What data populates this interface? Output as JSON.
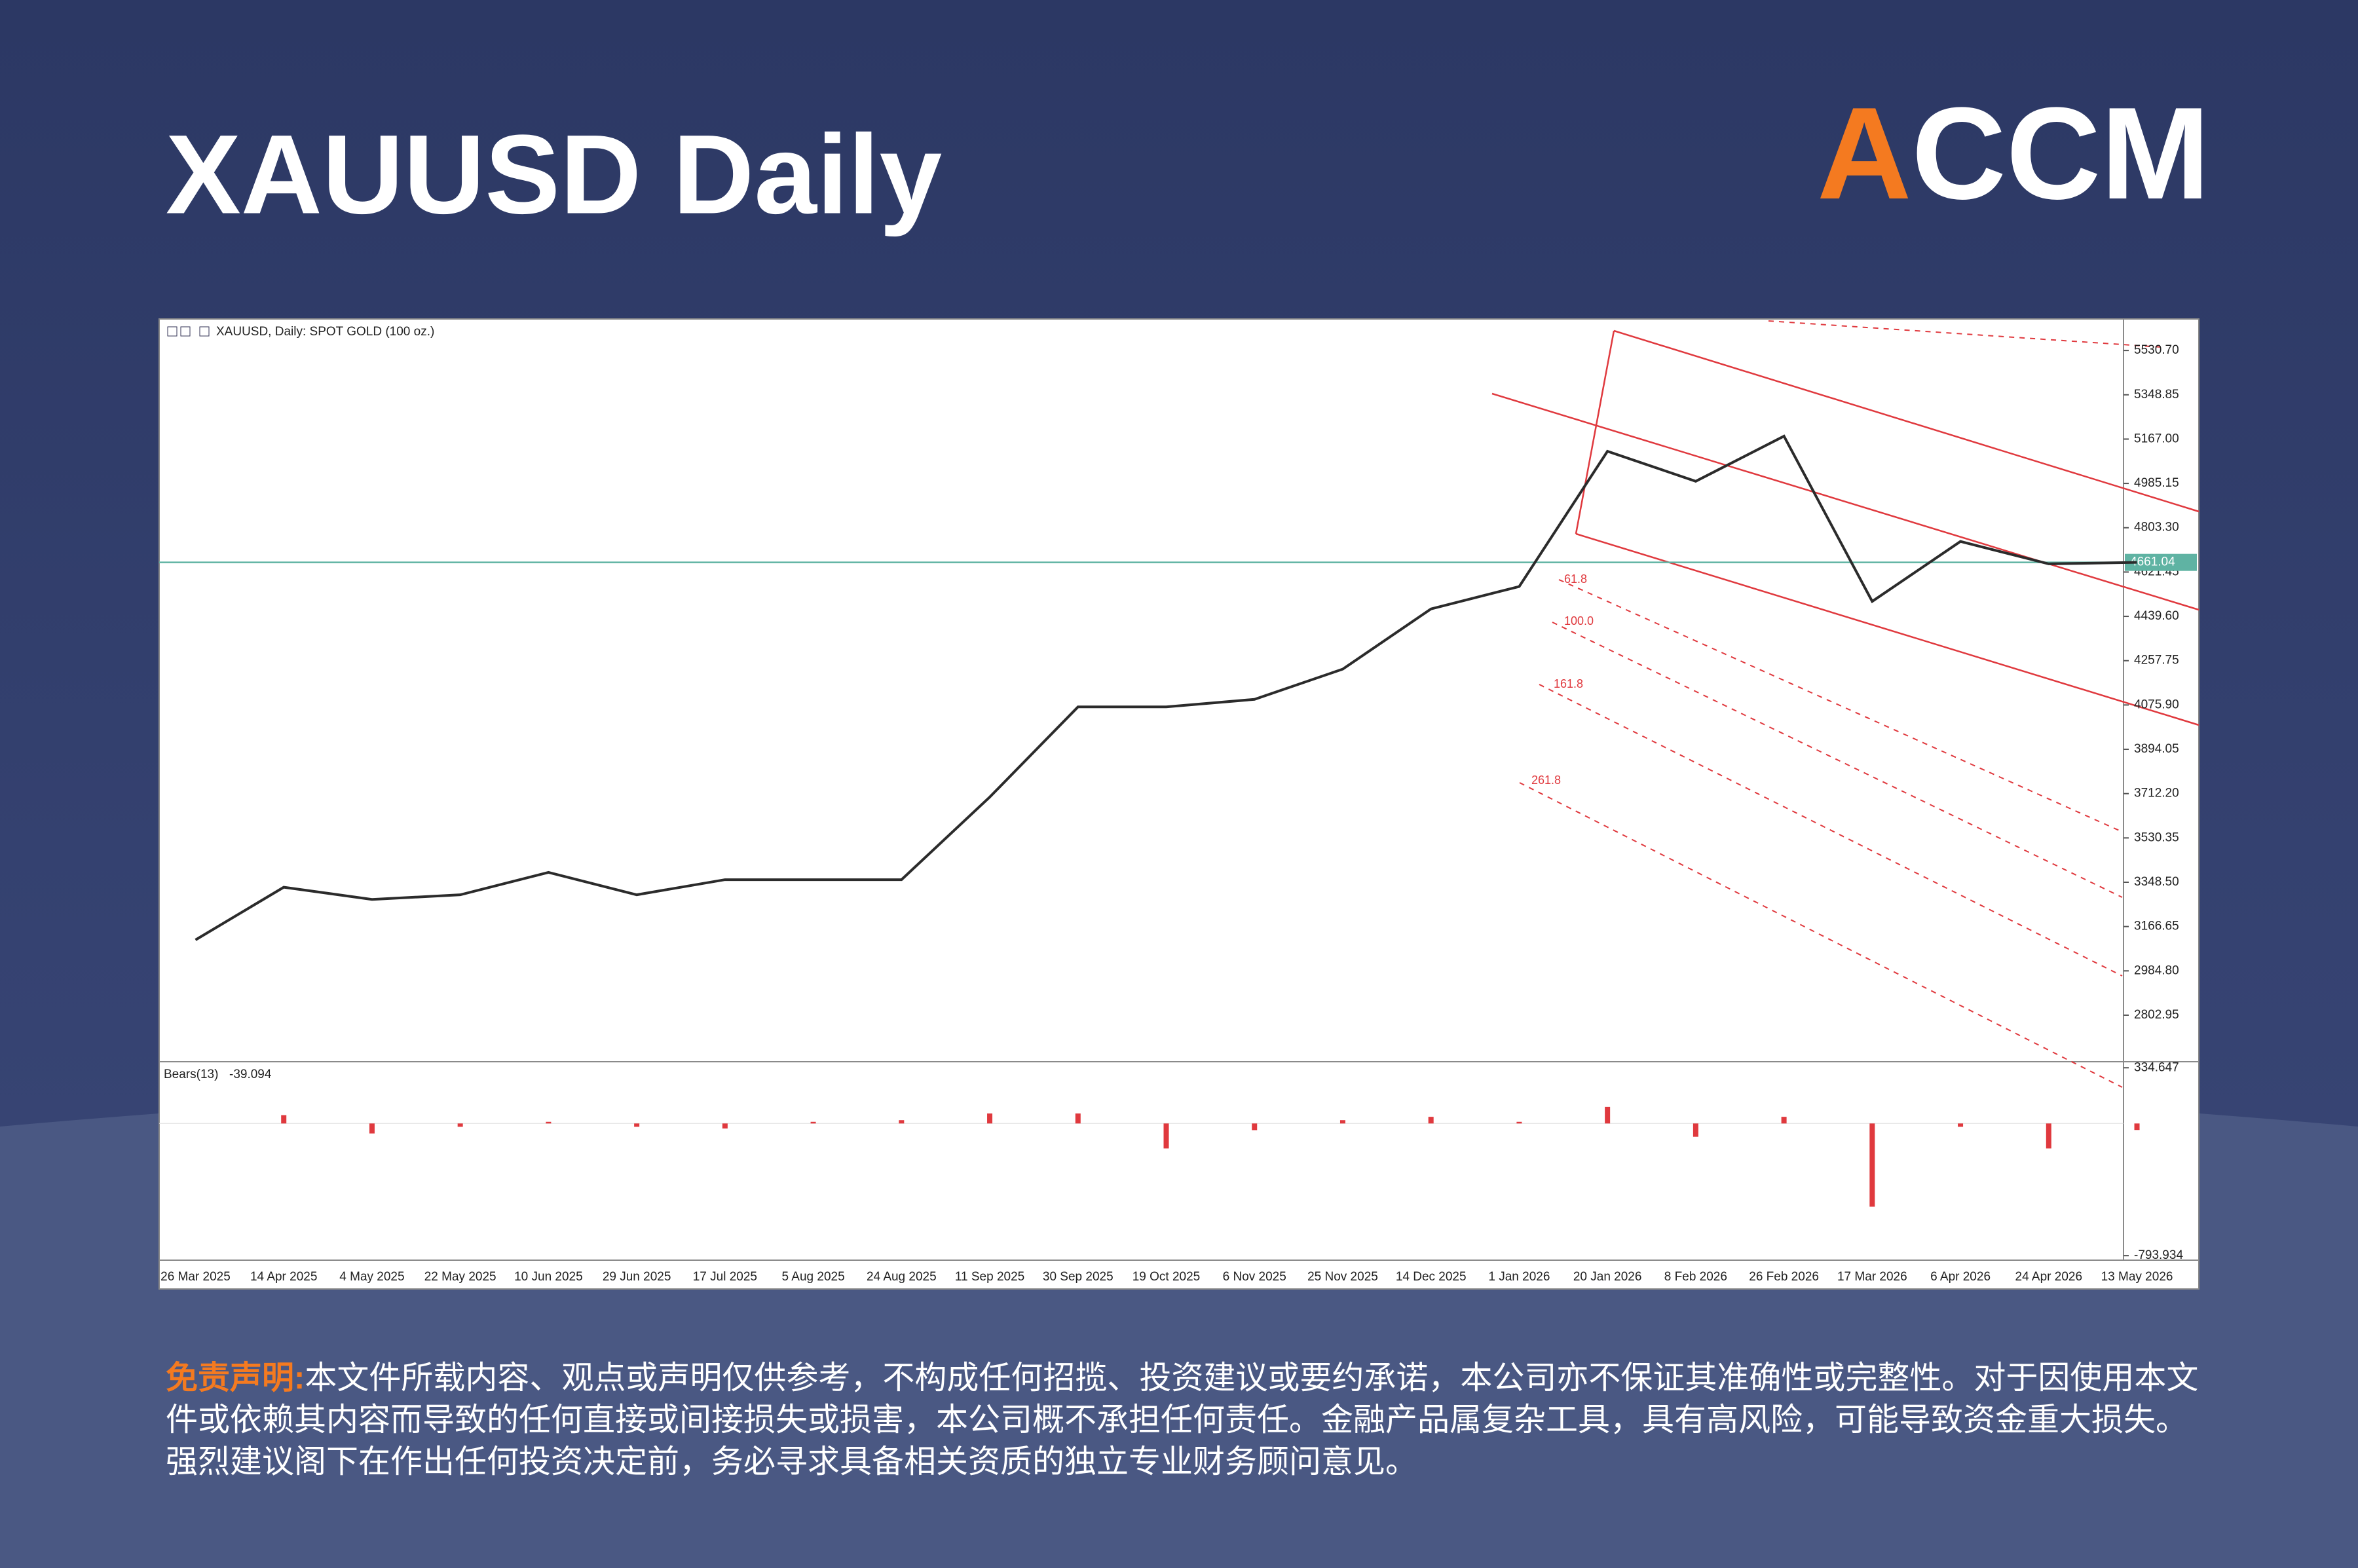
{
  "header": {
    "title": "XAUUSD Daily",
    "logo": "ACCM"
  },
  "chart_data": {
    "type": "line",
    "title": "XAUUSD, Daily:  SPOT GOLD (100 oz.)",
    "categories": [
      "26 Mar 2025",
      "14 Apr 2025",
      "4 May 2025",
      "22 May 2025",
      "10 Jun 2025",
      "29 Jun 2025",
      "17 Jul 2025",
      "5 Aug 2025",
      "24 Aug 2025",
      "11 Sep 2025",
      "30 Sep 2025",
      "19 Oct 2025",
      "6 Nov 2025",
      "25 Nov 2025",
      "14 Dec 2025",
      "1 Jan 2026",
      "20 Jan 2026",
      "8 Feb 2026",
      "26 Feb 2026",
      "17 Mar 2026",
      "6 Apr 2026",
      "24 Apr 2026",
      "13 May 2026"
    ],
    "values": [
      3112,
      3328,
      3278,
      3297,
      3389,
      3297,
      3359,
      3359,
      3359,
      3698,
      4068,
      4068,
      4099,
      4223,
      4470,
      4562,
      5117,
      4994,
      5179,
      4501,
      4747,
      4655,
      4661
    ],
    "color": "#2b2b2b",
    "ylim": [
      2612,
      5660
    ],
    "yticks": [
      {
        "value": 5530.7,
        "label": "5530.70"
      },
      5348.85,
      {
        "value": 5167,
        "label": "5167.00"
      },
      4985.15,
      {
        "value": 4803.3,
        "label": "4803.30"
      },
      4621.45,
      {
        "value": 4439.6,
        "label": "4439.60"
      },
      4257.75,
      {
        "value": 4075.9,
        "label": "4075.90"
      },
      3894.05,
      {
        "value": 3712.2,
        "label": "3712.20"
      },
      3530.35,
      {
        "value": 3348.5,
        "label": "3348.50"
      },
      3166.65,
      {
        "value": 2984.8,
        "label": "2984.80"
      },
      2802.95
    ],
    "last_price": 4661.04,
    "last_price_color": "#5fb3a3",
    "indicator": {
      "name": "Bears(13)",
      "value": -39.094,
      "color": "#e0393e",
      "values": [
        0,
        50,
        -60,
        -20,
        10,
        -20,
        -30,
        10,
        20,
        60,
        60,
        -150,
        -40,
        20,
        40,
        10,
        100,
        -80,
        40,
        -500,
        -20,
        -150,
        -39.094
      ],
      "ylim": [
        -821,
        371
      ],
      "yticks": [
        334.647,
        -793.934
      ]
    },
    "annotations": [
      "61.8",
      "100.0",
      "161.8",
      "261.8"
    ]
  },
  "disclaimer": {
    "label": "免责声明:",
    "text": "本文件所载内容、观点或声明仅供参考，不构成任何招揽、投资建议或要约承诺，本公司亦不保证其准确性或完整性。对于因使用本文件或依赖其内容而导致的任何直接或间接损失或损害，本公司概不承担任何责任。金融产品属复杂工具，具有高风险，可能导致资金重大损失。强烈建议阁下在作出任何投资决定前，务必寻求具备相关资质的独立专业财务顾问意见。"
  }
}
